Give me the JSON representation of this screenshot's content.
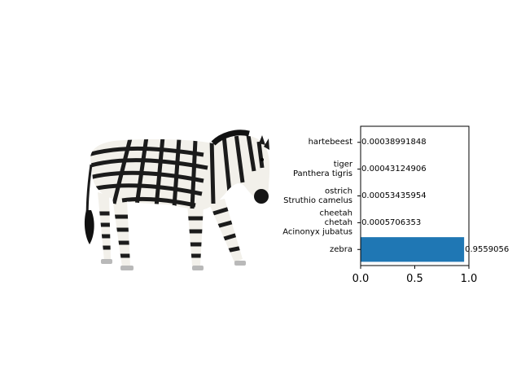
{
  "image": {
    "subject": "zebra"
  },
  "chart_data": {
    "type": "bar",
    "orientation": "horizontal",
    "categories": [
      [
        "zebra"
      ],
      [
        "cheetah",
        "chetah",
        "Acinonyx jubatus"
      ],
      [
        "ostrich",
        "Struthio camelus"
      ],
      [
        "tiger",
        "Panthera tigris"
      ],
      [
        "hartebeest"
      ]
    ],
    "values": [
      0.9559056,
      0.0005706353,
      0.00053435954,
      0.00043124906,
      0.00038991848
    ],
    "value_labels": [
      "0.9559056",
      "0.0005706353",
      "0.00053435954",
      "0.00043124906",
      "0.00038991848"
    ],
    "xlim": [
      0,
      1
    ],
    "xticks": [
      "0.0",
      "0.5",
      "1.0"
    ],
    "xtick_values": [
      0,
      0.5,
      1.0
    ],
    "title": "",
    "xlabel": "",
    "ylabel": "",
    "grid": false,
    "bar_color": "#1f77b4"
  }
}
